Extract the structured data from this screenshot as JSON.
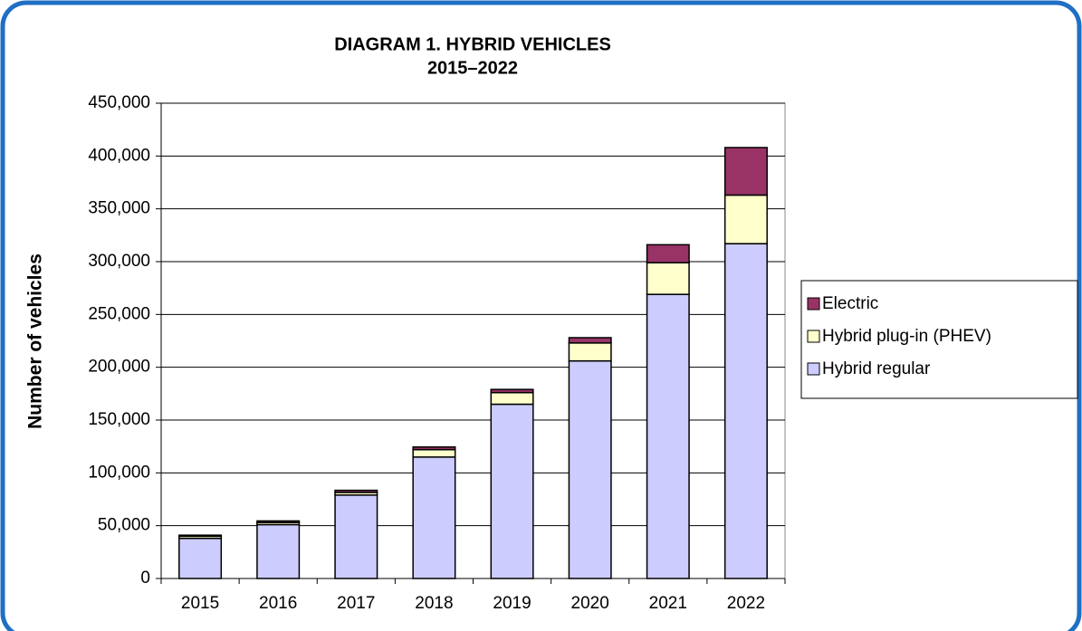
{
  "chart_data": {
    "type": "stacked-bar",
    "title": "DIAGRAM 1. HYBRID VEHICLES",
    "subtitle": "2015–2022",
    "y_label": "Number of vehicles",
    "categories": [
      "2015",
      "2016",
      "2017",
      "2018",
      "2019",
      "2020",
      "2021",
      "2022"
    ],
    "series": [
      {
        "name": "Hybrid regular",
        "color": "#ccccff",
        "values": [
          38000,
          51000,
          79000,
          115000,
          165000,
          206000,
          269000,
          317000
        ]
      },
      {
        "name": "Hybrid plug-in (PHEV)",
        "color": "#ffffcc",
        "values": [
          2000,
          2000,
          2500,
          7000,
          11000,
          17000,
          30000,
          46000
        ]
      },
      {
        "name": "Electric",
        "color": "#993366",
        "values": [
          1000,
          1500,
          2000,
          2500,
          3000,
          5000,
          17000,
          45000
        ]
      }
    ],
    "ylim": [
      0,
      450000
    ],
    "yticks": [
      0,
      {
        "value": 50000,
        "label": "50,000"
      },
      {
        "value": 100000,
        "label": "100,000"
      },
      {
        "value": 150000,
        "label": "150,000"
      },
      {
        "value": 200000,
        "label": "200,000"
      },
      {
        "value": 250000,
        "label": "250,000"
      },
      {
        "value": 300000,
        "label": "300,000"
      },
      {
        "value": 350000,
        "label": "350,000"
      },
      {
        "value": 400000,
        "label": "400,000"
      },
      {
        "value": 450000,
        "label": "450,000"
      }
    ],
    "grid": true,
    "legend": "right"
  }
}
